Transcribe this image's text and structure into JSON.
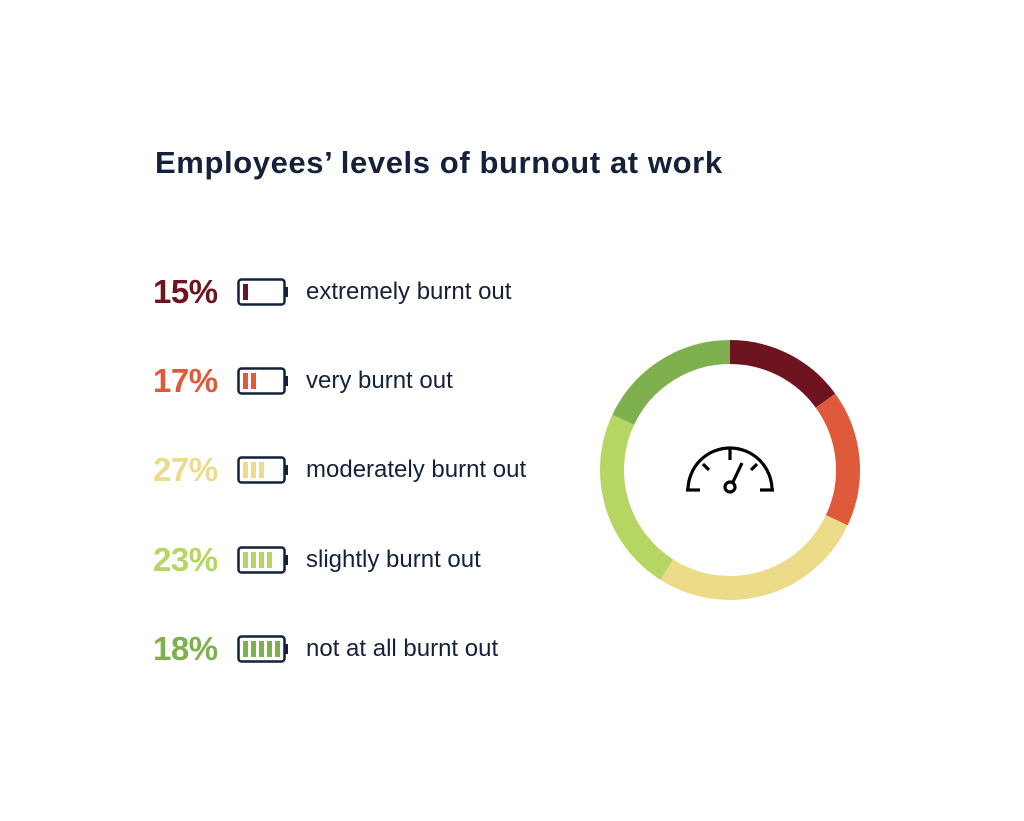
{
  "chart_data": {
    "type": "pie",
    "variant": "donut",
    "title": "Employees’ levels of burnout at work",
    "categories": [
      "extremely burnt out",
      "very burnt out",
      "moderately burnt out",
      "slightly burnt out",
      "not at all burnt out"
    ],
    "values": [
      15,
      17,
      27,
      23,
      18
    ],
    "labels": [
      "15%",
      "17%",
      "27%",
      "23%",
      "18%"
    ],
    "colors": [
      "#6e1420",
      "#de5a3a",
      "#ecdc8a",
      "#b7d562",
      "#7fb04e"
    ],
    "battery_levels": [
      1,
      2,
      3,
      4,
      5
    ],
    "center_icon": "speedometer-icon",
    "legend_placement": "left"
  }
}
